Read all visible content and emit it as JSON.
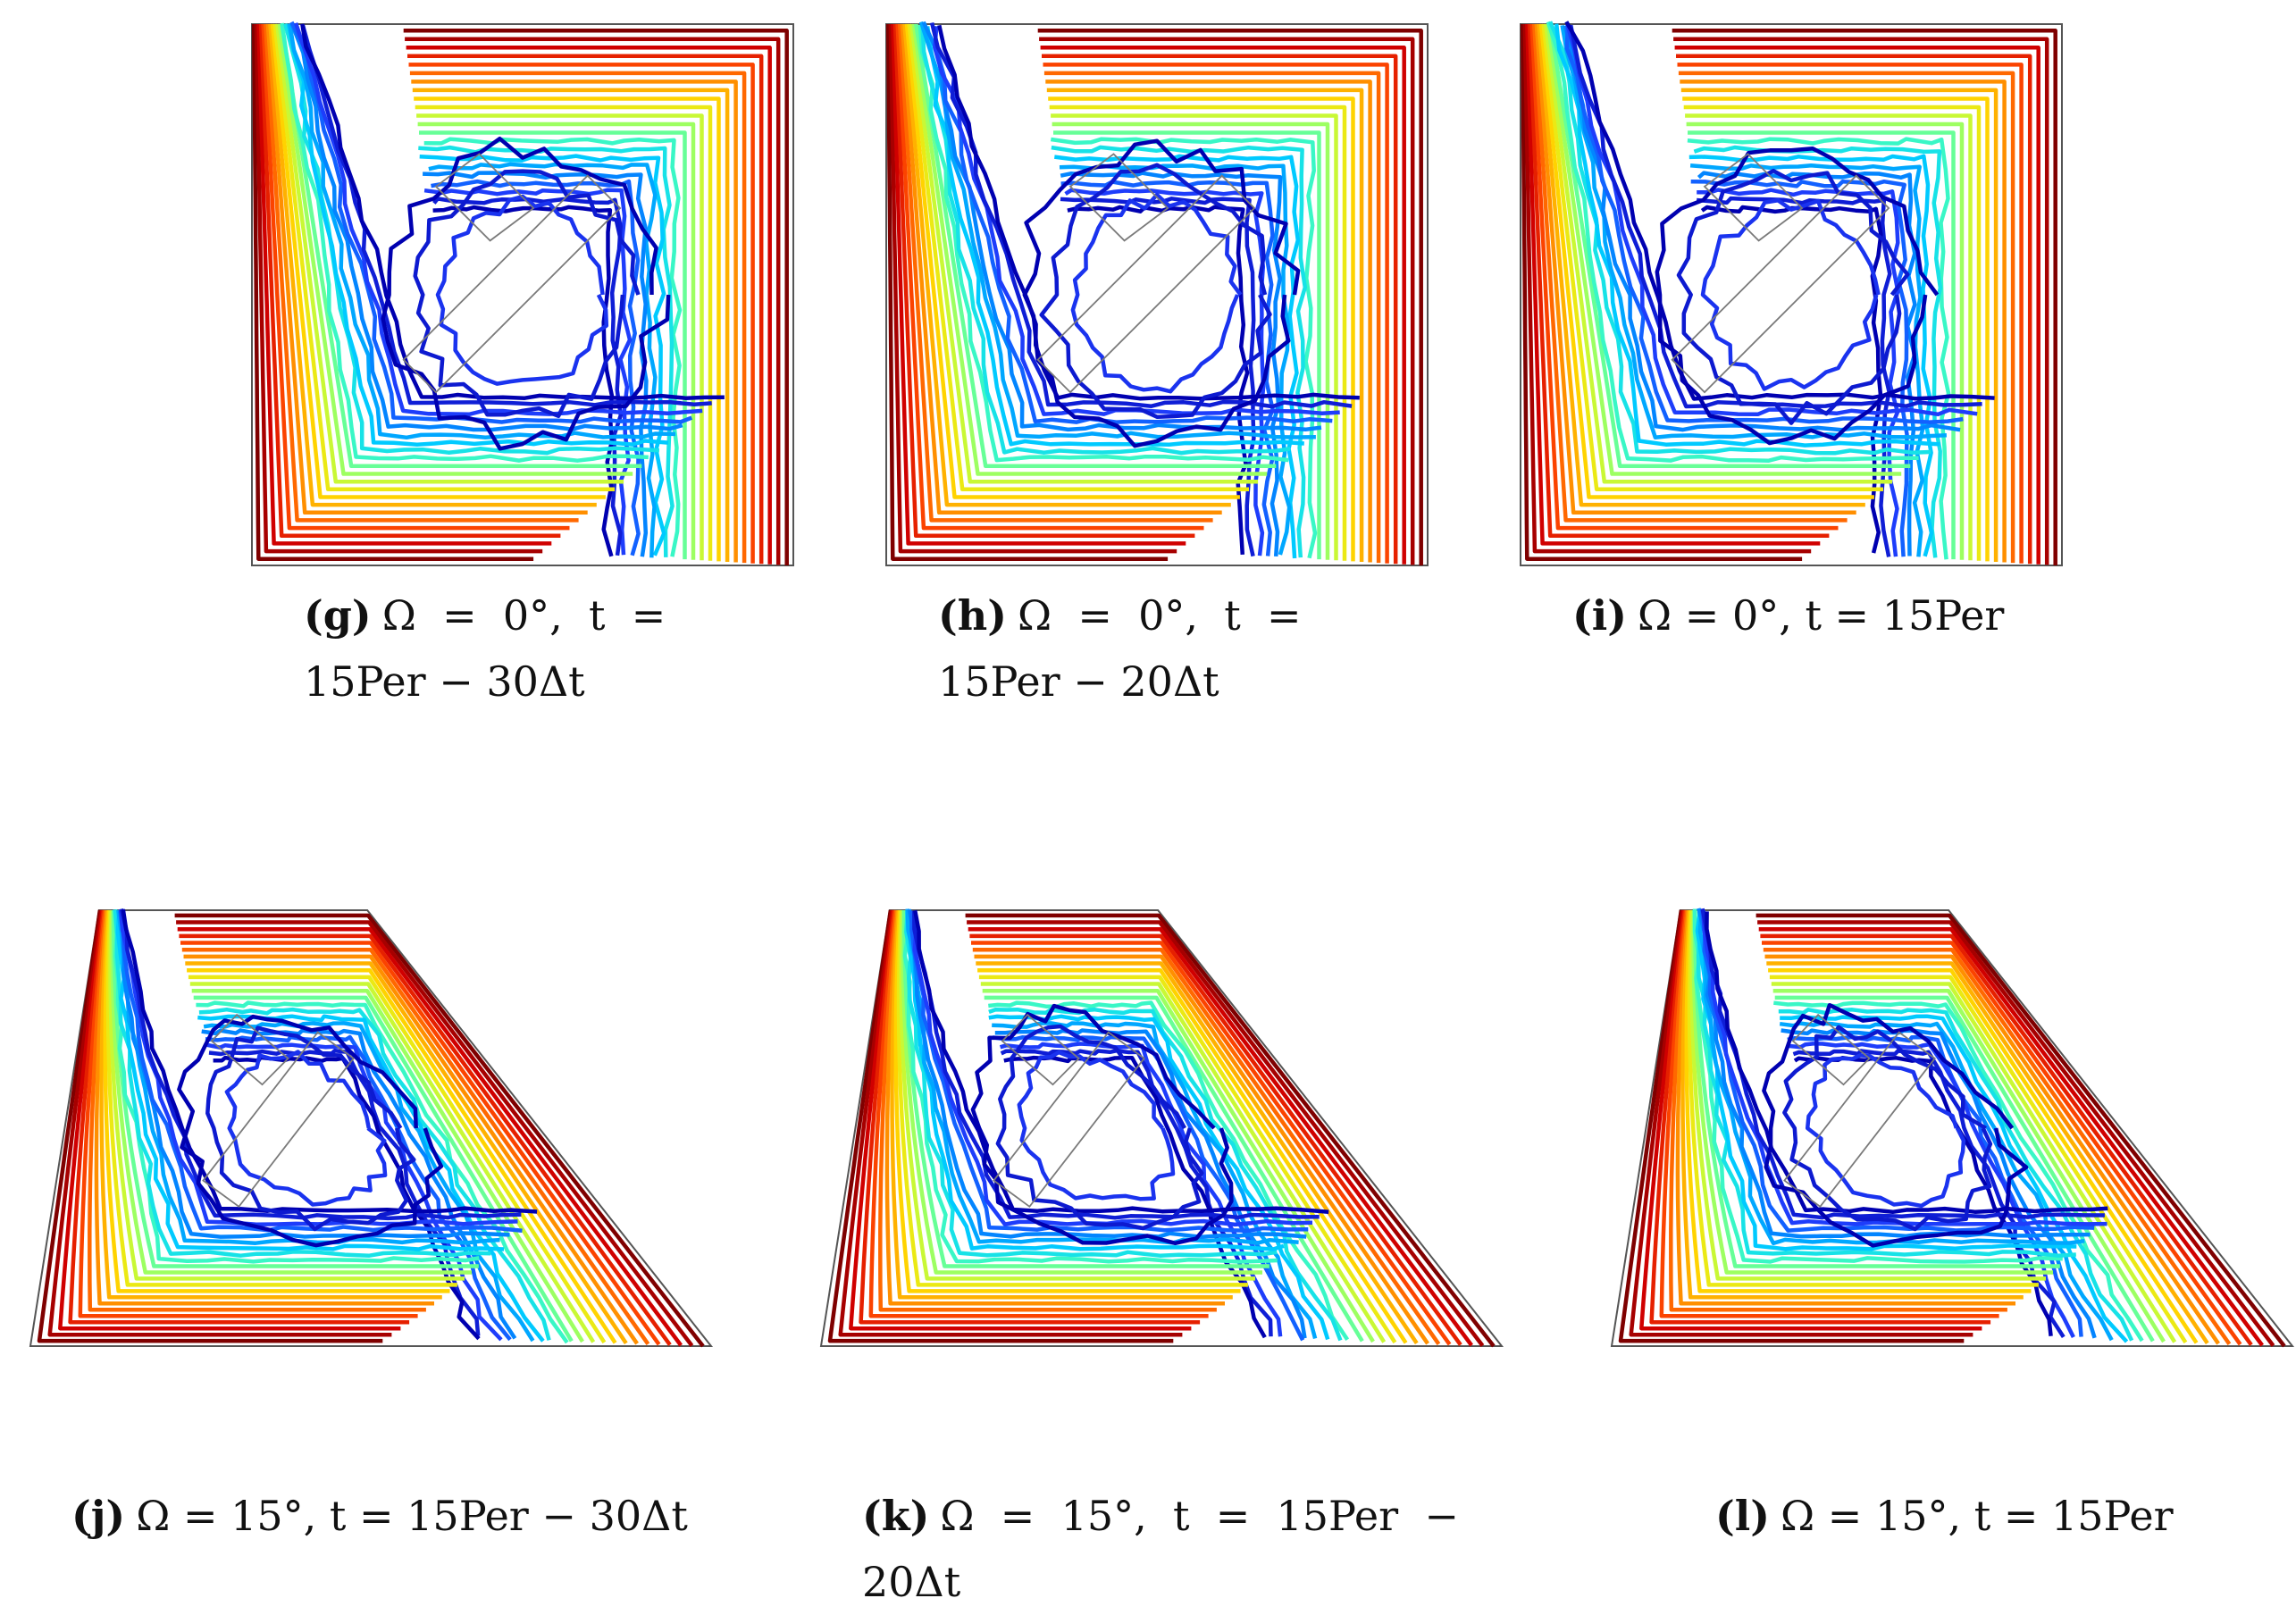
{
  "figure": {
    "panels": [
      {
        "id": "g",
        "label": "(g)",
        "caption_line1": "Ω  =  0°,  t  =",
        "caption_line2": "15Per − 30Δt",
        "shape": "square"
      },
      {
        "id": "h",
        "label": "(h)",
        "caption_line1": "Ω  =  0°,  t  =",
        "caption_line2": "15Per − 20Δt",
        "shape": "square"
      },
      {
        "id": "i",
        "label": "(i)",
        "caption_line1": "Ω = 0°, t = 15Per",
        "caption_line2": "",
        "shape": "square"
      },
      {
        "id": "j",
        "label": "(j)",
        "caption_line1": "Ω = 15°, t = 15Per − 30Δt",
        "caption_line2": "",
        "shape": "trapezoid"
      },
      {
        "id": "k",
        "label": "(k)",
        "caption_line1": "Ω  =  15°,  t  =  15Per  −",
        "caption_line2": "20Δt",
        "shape": "trapezoid"
      },
      {
        "id": "l",
        "label": "(l)",
        "caption_line1": "Ω = 15°, t = 15Per",
        "caption_line2": "",
        "shape": "trapezoid"
      }
    ],
    "colors": {
      "colormap": [
        "#7f0000",
        "#d40000",
        "#ff4a00",
        "#ff9a00",
        "#ffe000",
        "#b8ff46",
        "#46ffb8",
        "#00d4ff",
        "#008cff",
        "#2040ff",
        "#0000b0"
      ],
      "frame": "#555555",
      "obstacle": "#7a7a7a"
    }
  }
}
